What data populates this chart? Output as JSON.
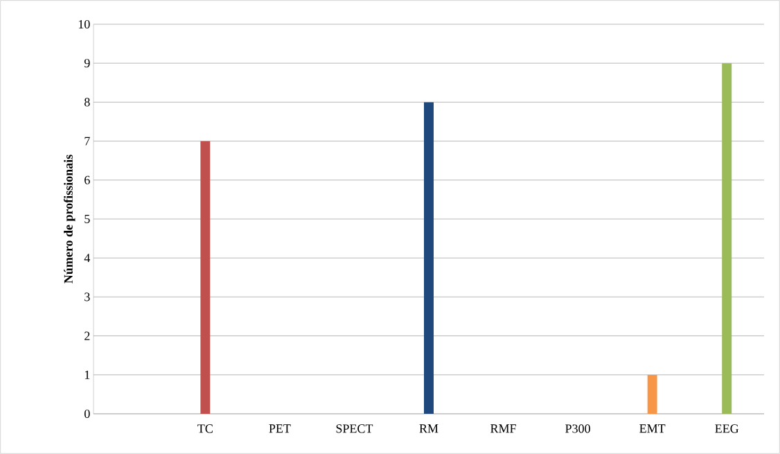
{
  "chart_data": {
    "type": "bar",
    "ylabel": "Número de profissionais",
    "categories": [
      null,
      "TC",
      "PET",
      "SPECT",
      "RM",
      "RMF",
      "P300",
      "EMT",
      "EEG"
    ],
    "values": [
      0,
      7,
      0,
      0,
      8,
      0,
      0,
      1,
      9
    ],
    "colors": [
      "#4f81bd",
      "#c0504d",
      "#4f81bd",
      "#4f81bd",
      "#1f497d",
      "#4f81bd",
      "#4f81bd",
      "#f79646",
      "#9bbb59"
    ],
    "ylim": [
      0,
      10
    ],
    "yticks": [
      0,
      1,
      2,
      3,
      4,
      5,
      6,
      7,
      8,
      9,
      10
    ],
    "grid": "y",
    "legend": false
  }
}
